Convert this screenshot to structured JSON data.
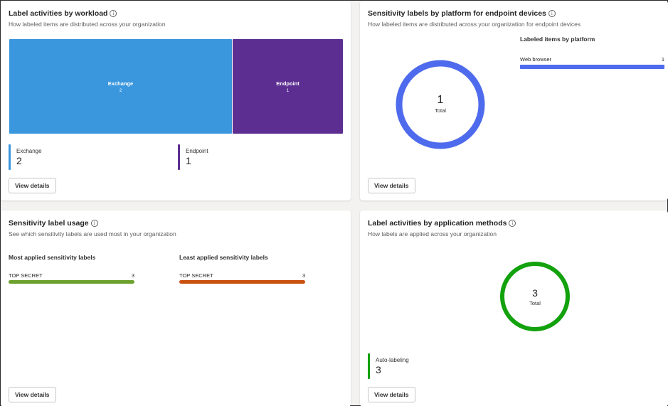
{
  "workload": {
    "title": "Label activities by workload",
    "subtitle": "How labeled items are distributed across your organization",
    "treemap": [
      {
        "name": "Exchange",
        "value": "2",
        "color": "#3a96dd"
      },
      {
        "name": "Endpoint",
        "value": "1",
        "color": "#5c2e91"
      }
    ],
    "legend": [
      {
        "label": "Exchange",
        "value": "2",
        "color": "#3a96dd"
      },
      {
        "label": "Endpoint",
        "value": "1",
        "color": "#5c2e91"
      }
    ],
    "button": "View details"
  },
  "platform": {
    "title": "Sensitivity labels by platform for endpoint devices",
    "subtitle": "How labeled items are distributed across your organization for endpoint devices",
    "total_value": "1",
    "total_label": "Total",
    "donut_color": "#4f6bed",
    "list_heading": "Labeled items by platform",
    "items": [
      {
        "label": "Web browser",
        "value": "1",
        "share": 1.0
      }
    ],
    "button": "View details"
  },
  "usage": {
    "title": "Sensitivity label usage",
    "subtitle": "See which sensitivity labels are used most in your organization",
    "most_heading": "Most applied sensitivity labels",
    "least_heading": "Least applied sensitivity labels",
    "most": [
      {
        "label": "TOP SECRET",
        "value": "3",
        "color": "#6ca12d"
      }
    ],
    "least": [
      {
        "label": "TOP SECRET",
        "value": "3",
        "color": "#ca5010"
      }
    ],
    "button": "View details"
  },
  "methods": {
    "title": "Label activities by application methods",
    "subtitle": "How labels are applied across your organization",
    "total_value": "3",
    "total_label": "Total",
    "donut_color": "#13a10e",
    "legend": [
      {
        "label": "Auto-labeling",
        "value": "3",
        "color": "#13a10e"
      }
    ],
    "button": "View details"
  }
}
